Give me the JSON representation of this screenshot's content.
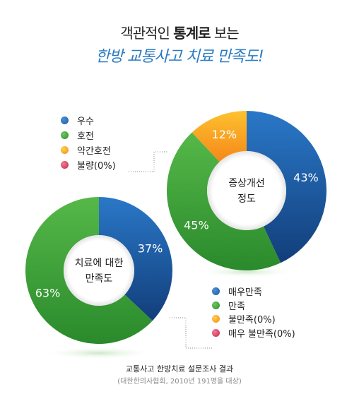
{
  "header": {
    "title_prefix": "객관적인",
    "title_bold": "통계로",
    "title_suffix": "보는",
    "subtitle": "한방 교통사고 치료 만족도!"
  },
  "legend_top": [
    {
      "label": "우수",
      "color": "#1b5aa0"
    },
    {
      "label": "호전",
      "color": "#3ea036"
    },
    {
      "label": "약간호전",
      "color": "#f7a51d"
    },
    {
      "label": "불량(0%)",
      "color": "#d84060"
    }
  ],
  "legend_bottom": [
    {
      "label": "매우만족",
      "color": "#1b5aa0"
    },
    {
      "label": "만족",
      "color": "#3ea036"
    },
    {
      "label": "불만족(0%)",
      "color": "#f7a51d"
    },
    {
      "label": "매우 불만족(0%)",
      "color": "#d84060"
    }
  ],
  "chart_data": [
    {
      "type": "pie",
      "title": "증상개선 정도",
      "title_lines": [
        "증상개선",
        "정도"
      ],
      "slices": [
        {
          "label": "우수",
          "value": 43,
          "display": "43%",
          "color": "#1b5aa0"
        },
        {
          "label": "호전",
          "value": 45,
          "display": "45%",
          "color": "#3ea036"
        },
        {
          "label": "약간호전",
          "value": 12,
          "display": "12%",
          "color": "#f7a51d"
        },
        {
          "label": "불량",
          "value": 0,
          "display": "",
          "color": "#d84060"
        }
      ]
    },
    {
      "type": "pie",
      "title": "치료에 대한 만족도",
      "title_lines": [
        "치료에 대한",
        "만족도"
      ],
      "slices": [
        {
          "label": "매우만족",
          "value": 37,
          "display": "37%",
          "color": "#1b5aa0"
        },
        {
          "label": "만족",
          "value": 63,
          "display": "63%",
          "color": "#3ea036"
        },
        {
          "label": "불만족",
          "value": 0,
          "display": "",
          "color": "#f7a51d"
        },
        {
          "label": "매우 불만족",
          "value": 0,
          "display": "",
          "color": "#d84060"
        }
      ]
    }
  ],
  "footer": {
    "line1": "교통사고 한방치료 설문조사 결과",
    "line2": "(대한한의사협회, 2010년 191명을 대상)"
  }
}
